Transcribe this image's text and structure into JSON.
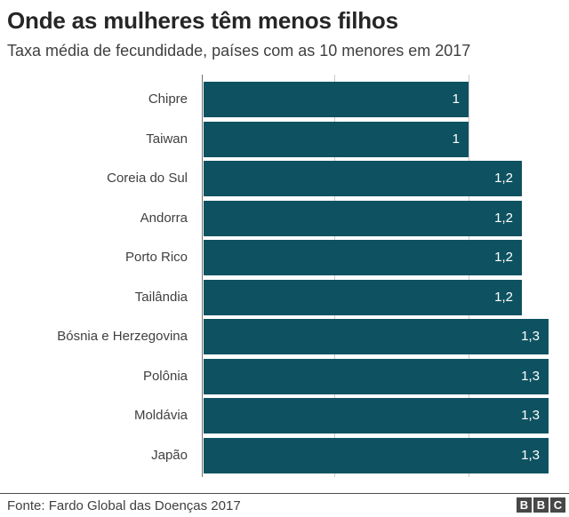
{
  "title": "Onde as mulheres têm menos filhos",
  "subtitle": "Taxa média de fecundidade, países com as 10 menores em 2017",
  "chart_data": {
    "type": "bar",
    "orientation": "horizontal",
    "title": "Onde as mulheres têm menos filhos",
    "subtitle": "Taxa média de fecundidade, países com as 10 menores em 2017",
    "categories": [
      "Chipre",
      "Taiwan",
      "Coreia do Sul",
      "Andorra",
      "Porto Rico",
      "Tailândia",
      "Bósnia e Herzegovina",
      "Polônia",
      "Moldávia",
      "Japão"
    ],
    "values": [
      1,
      1,
      1.2,
      1.2,
      1.2,
      1.2,
      1.3,
      1.3,
      1.3,
      1.3
    ],
    "value_labels": [
      "1",
      "1",
      "1,2",
      "1,2",
      "1,2",
      "1,2",
      "1,3",
      "1,3",
      "1,3",
      "1,3"
    ],
    "xlabel": "",
    "ylabel": "",
    "xlim": [
      0,
      1.38
    ],
    "gridlines": [
      0.5,
      1.0
    ],
    "tick_labels_shown": false,
    "legend": "none",
    "bar_color": "#0e5261"
  },
  "colors": {
    "bar": "#0e5261",
    "axis_line": "#707070",
    "gridline": "#cccccc",
    "title_text": "#262626",
    "body_text": "#404040",
    "value_text": "#ffffff",
    "logo_block_bg": "#474747"
  },
  "footer": {
    "source": "Fonte: Fardo Global das Doenças 2017",
    "logo_letters": [
      "B",
      "B",
      "C"
    ]
  }
}
